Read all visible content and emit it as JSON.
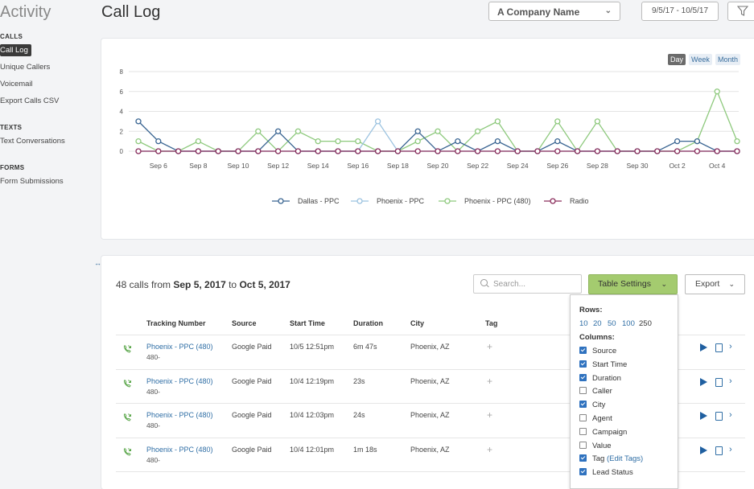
{
  "sidebar": {
    "title": "Activity",
    "sections": [
      {
        "heading": "CALLS",
        "items": [
          "Call Log",
          "Unique Callers",
          "Voicemail",
          "Export Calls CSV"
        ]
      },
      {
        "heading": "TEXTS",
        "items": [
          "Text Conversations"
        ]
      },
      {
        "heading": "FORMS",
        "items": [
          "Form Submissions"
        ]
      }
    ],
    "active_item": "Call Log"
  },
  "header": {
    "title": "Call Log",
    "company_select": "A Company Name",
    "date_range": "9/5/17 - 10/5/17",
    "filter_icon": "funnel-icon"
  },
  "chart_controls": {
    "day": "Day",
    "week": "Week",
    "month": "Month",
    "active": "Day"
  },
  "chart_data": {
    "type": "line",
    "x": [
      "Sep 5",
      "Sep 6",
      "Sep 7",
      "Sep 8",
      "Sep 9",
      "Sep 10",
      "Sep 11",
      "Sep 12",
      "Sep 13",
      "Sep 14",
      "Sep 15",
      "Sep 16",
      "Sep 17",
      "Sep 18",
      "Sep 19",
      "Sep 20",
      "Sep 21",
      "Sep 22",
      "Sep 23",
      "Sep 24",
      "Sep 25",
      "Sep 26",
      "Sep 27",
      "Sep 28",
      "Sep 29",
      "Sep 30",
      "Oct 1",
      "Oct 2",
      "Oct 3",
      "Oct 4",
      "Oct 5"
    ],
    "xticks": [
      "Sep 6",
      "Sep 8",
      "Sep 10",
      "Sep 12",
      "Sep 14",
      "Sep 16",
      "Sep 18",
      "Sep 20",
      "Sep 22",
      "Sep 24",
      "Sep 26",
      "Sep 28",
      "Sep 30",
      "Oct 2",
      "Oct 4"
    ],
    "yticks": [
      0,
      2,
      4,
      6,
      8
    ],
    "ylim": [
      0,
      8
    ],
    "grid": true,
    "legend_position": "bottom",
    "series": [
      {
        "name": "Dallas - PPC",
        "color": "#3a6592",
        "values": [
          3,
          1,
          0,
          0,
          0,
          0,
          0,
          2,
          0,
          0,
          0,
          0,
          0,
          0,
          2,
          0,
          1,
          0,
          1,
          0,
          0,
          1,
          0,
          0,
          0,
          0,
          0,
          1,
          1,
          0,
          0
        ]
      },
      {
        "name": "Phoenix - PPC",
        "color": "#9cc3e0",
        "values": [
          0,
          0,
          0,
          0,
          0,
          0,
          0,
          0,
          0,
          0,
          0,
          0,
          3,
          0,
          0,
          0,
          0,
          0,
          0,
          0,
          0,
          0,
          0,
          0,
          0,
          0,
          0,
          0,
          0,
          0,
          0
        ]
      },
      {
        "name": "Phoenix - PPC (480)",
        "color": "#8ec97d",
        "values": [
          1,
          0,
          0,
          1,
          0,
          0,
          2,
          0,
          2,
          1,
          1,
          1,
          0,
          0,
          1,
          2,
          0,
          2,
          3,
          0,
          0,
          3,
          0,
          3,
          0,
          0,
          0,
          0,
          1,
          6,
          1
        ]
      },
      {
        "name": "Radio",
        "color": "#8b2d5c",
        "values": [
          0,
          0,
          0,
          0,
          0,
          0,
          0,
          0,
          0,
          0,
          0,
          0,
          0,
          0,
          0,
          0,
          0,
          0,
          0,
          0,
          0,
          0,
          0,
          0,
          0,
          0,
          0,
          0,
          0,
          0,
          0
        ]
      }
    ]
  },
  "table": {
    "count_prefix": "48 calls from ",
    "count_from": "Sep 5, 2017",
    "count_mid": " to ",
    "count_to": "Oct 5, 2017",
    "search_placeholder": "Search...",
    "table_settings_label": "Table Settings",
    "export_label": "Export",
    "columns": [
      "Tracking Number",
      "Source",
      "Start Time",
      "Duration",
      "City",
      "Tag"
    ],
    "rows": [
      {
        "tracking": "Phoenix - PPC (480)",
        "number": "480-",
        "source": "Google Paid",
        "start": "10/5 12:51pm",
        "duration": "6m 47s",
        "city": "Phoenix, AZ",
        "tag": "+"
      },
      {
        "tracking": "Phoenix - PPC (480)",
        "number": "480-",
        "source": "Google Paid",
        "start": "10/4 12:19pm",
        "duration": "23s",
        "city": "Phoenix, AZ",
        "tag": "+"
      },
      {
        "tracking": "Phoenix - PPC (480)",
        "number": "480-",
        "source": "Google Paid",
        "start": "10/4 12:03pm",
        "duration": "24s",
        "city": "Phoenix, AZ",
        "tag": "+"
      },
      {
        "tracking": "Phoenix - PPC (480)",
        "number": "480-",
        "source": "Google Paid",
        "start": "10/4 12:01pm",
        "duration": "1m 18s",
        "city": "Phoenix, AZ",
        "tag": "+"
      }
    ]
  },
  "table_settings_menu": {
    "rows_label": "Rows:",
    "row_options": [
      "10",
      "20",
      "50",
      "100",
      "250"
    ],
    "selected_rows": "250",
    "columns_label": "Columns:",
    "columns": [
      {
        "label": "Source",
        "checked": true
      },
      {
        "label": "Start Time",
        "checked": true
      },
      {
        "label": "Duration",
        "checked": true
      },
      {
        "label": "Caller",
        "checked": false
      },
      {
        "label": "City",
        "checked": true
      },
      {
        "label": "Agent",
        "checked": false
      },
      {
        "label": "Campaign",
        "checked": false
      },
      {
        "label": "Value",
        "checked": false
      },
      {
        "label": "Tag",
        "checked": true,
        "extra": "(Edit Tags)"
      },
      {
        "label": "Lead Status",
        "checked": true
      }
    ]
  }
}
